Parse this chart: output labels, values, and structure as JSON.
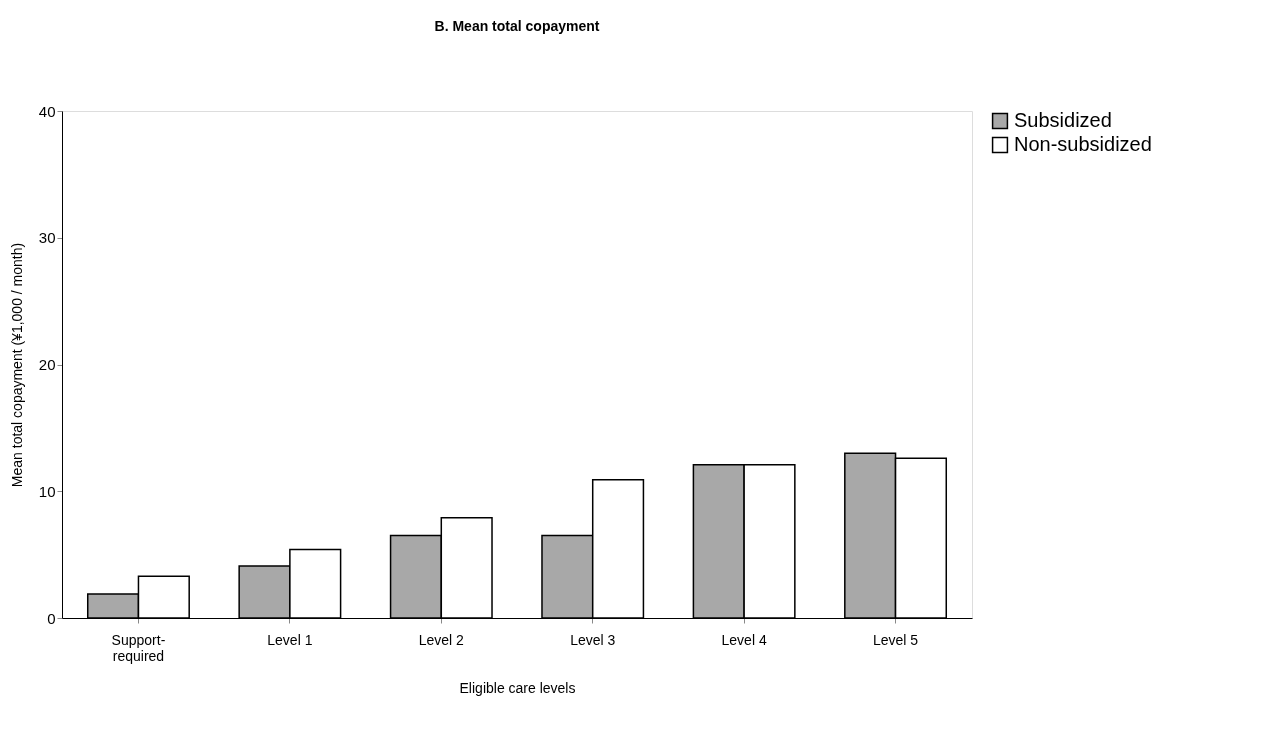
{
  "chart_data": {
    "type": "bar",
    "title": "B. Mean total copayment",
    "xlabel": "Eligible care levels",
    "ylabel": "Mean total copayment (¥1,000 / month)",
    "categories": [
      "Support-\nrequired",
      "Level 1",
      "Level 2",
      "Level 3",
      "Level 4",
      "Level 5"
    ],
    "series": [
      {
        "name": "Subsidized",
        "color": "#a8a8a8",
        "values": [
          1.9,
          4.1,
          6.5,
          6.5,
          12.1,
          13.0
        ]
      },
      {
        "name": "Non-subsidized",
        "color": "#ffffff",
        "values": [
          3.3,
          5.4,
          7.9,
          10.9,
          12.1,
          12.6
        ]
      }
    ],
    "ylim": [
      0,
      40
    ],
    "yticks": [
      0,
      10,
      20,
      30,
      40
    ],
    "grid": false,
    "legend": "right"
  }
}
